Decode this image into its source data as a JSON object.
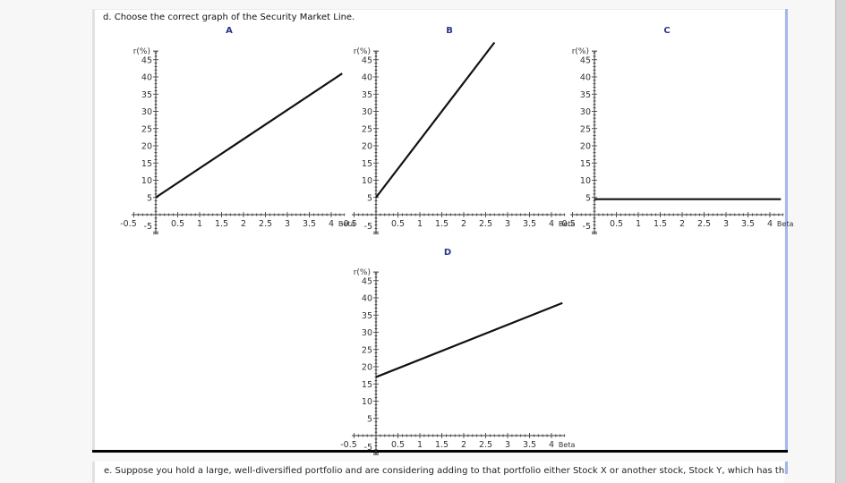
{
  "question": {
    "text": "d. Choose the correct graph of the Security Market Line."
  },
  "next_question": {
    "text": "e. Suppose you hold a large, well-diversified portfolio and are considering adding to that portfolio either Stock X or another stock, Stock Y, which has the"
  },
  "colors": {
    "label_blue": "#2a3590",
    "line": "#111111",
    "panel_accent": "#a4b6ee"
  },
  "chart_data": [
    {
      "type": "line",
      "title": "A",
      "xlabel": "Beta",
      "ylabel": "r(%)",
      "x": [
        0,
        4.25
      ],
      "y": [
        5,
        41
      ],
      "xlim": [
        -0.5,
        4.3
      ],
      "ylim": [
        -5,
        48
      ],
      "x_ticks": [
        "-0.5",
        "0.5",
        "1",
        "1.5",
        "2",
        "2.5",
        "3",
        "3.5",
        "4"
      ],
      "y_ticks": [
        "5",
        "10",
        "15",
        "20",
        "25",
        "30",
        "35",
        "40",
        "45"
      ],
      "y_negative_label": "-5"
    },
    {
      "type": "line",
      "title": "B",
      "xlabel": "Beta",
      "ylabel": "r(%)",
      "x": [
        0,
        2.7
      ],
      "y": [
        5,
        50
      ],
      "xlim": [
        -0.5,
        4.3
      ],
      "ylim": [
        -5,
        48
      ],
      "x_ticks": [
        "-0.5",
        "0.5",
        "1",
        "1.5",
        "2",
        "2.5",
        "3",
        "3.5",
        "4"
      ],
      "y_ticks": [
        "5",
        "10",
        "15",
        "20",
        "25",
        "30",
        "35",
        "40",
        "45"
      ],
      "y_negative_label": "-5"
    },
    {
      "type": "line",
      "title": "C",
      "xlabel": "Beta",
      "ylabel": "r(%)",
      "x": [
        0,
        4.25
      ],
      "y": [
        4.5,
        4.5
      ],
      "xlim": [
        -0.5,
        4.3
      ],
      "ylim": [
        -5,
        48
      ],
      "x_ticks": [
        "-0.5",
        "0.5",
        "1",
        "1.5",
        "2",
        "2.5",
        "3",
        "3.5",
        "4"
      ],
      "y_ticks": [
        "5",
        "10",
        "15",
        "20",
        "25",
        "30",
        "35",
        "40",
        "45"
      ],
      "y_negative_label": "-5"
    },
    {
      "type": "line",
      "title": "D",
      "xlabel": "Beta",
      "ylabel": "r(%)",
      "x": [
        0,
        4.25
      ],
      "y": [
        17,
        38.5
      ],
      "xlim": [
        -0.5,
        4.3
      ],
      "ylim": [
        -5,
        48
      ],
      "x_ticks": [
        "-0.5",
        "0.5",
        "1",
        "1.5",
        "2",
        "2.5",
        "3",
        "3.5",
        "4"
      ],
      "y_ticks": [
        "5",
        "10",
        "15",
        "20",
        "25",
        "30",
        "35",
        "40",
        "45"
      ],
      "y_negative_label": "-5"
    }
  ]
}
